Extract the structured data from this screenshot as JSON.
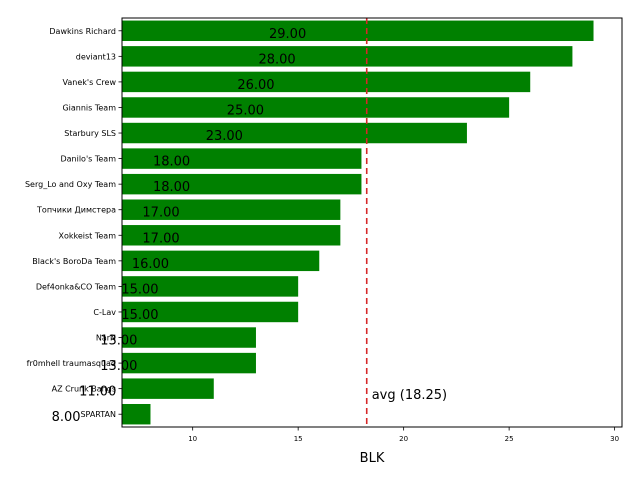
{
  "chart_data": {
    "type": "bar",
    "orientation": "horizontal",
    "categories": [
      "Dawkins Richard",
      "deviant13",
      "Vanek's Crew",
      "Giannis Team",
      "Starbury SLS",
      "Danilo's Team",
      "Serg_Lo and Oxy Team",
      "Топчики Димстера",
      "Xokkeist Team",
      "Black's BoroDa Team",
      "Def4onka&CO Team",
      "C-Lav",
      "NarN",
      "fr0mhell traumasquad",
      "AZ Crunk Bangs",
      "SPARTAN"
    ],
    "values": [
      29,
      28,
      26,
      25,
      23,
      18,
      18,
      17,
      17,
      16,
      15,
      15,
      13,
      13,
      11,
      8
    ],
    "value_labels": [
      "29.00",
      "28.00",
      "26.00",
      "25.00",
      "23.00",
      "18.00",
      "18.00",
      "17.00",
      "17.00",
      "16.00",
      "15.00",
      "15.00",
      "13.00",
      "13.00",
      "11.00",
      "8.00"
    ],
    "xlabel": "BLK",
    "xlim": [
      6.65,
      30.35
    ],
    "xticks": [
      10,
      15,
      20,
      25,
      30
    ],
    "xtick_labels": [
      "10",
      "15",
      "20",
      "25",
      "30"
    ],
    "bar_color": "#008000",
    "reference_line": {
      "value": 18.25,
      "label": "avg (18.25)",
      "color": "#d62728",
      "style": "dashed"
    },
    "grid": false,
    "legend": "none"
  }
}
